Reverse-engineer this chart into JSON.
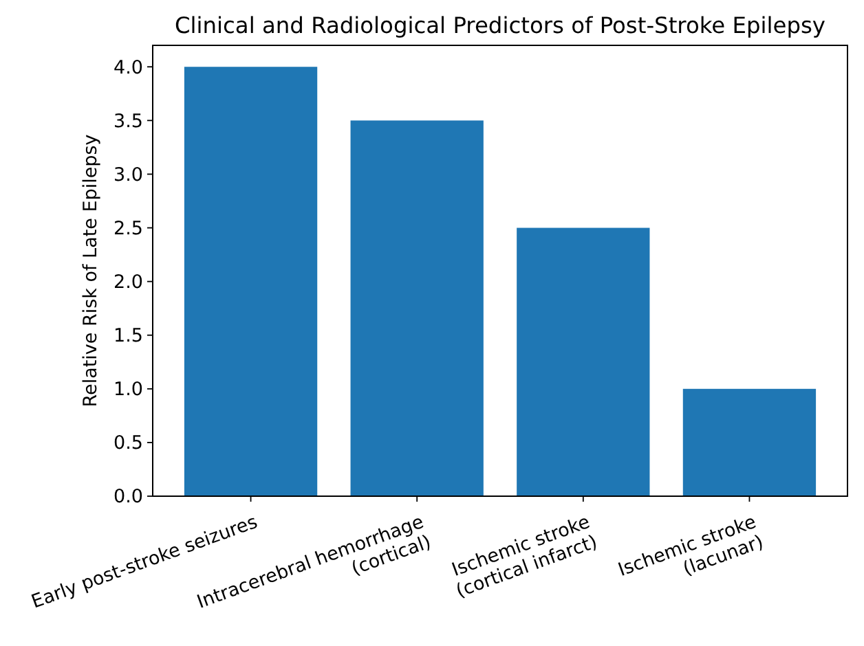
{
  "chart_data": {
    "type": "bar",
    "title": "Clinical and Radiological Predictors of Post-Stroke Epilepsy",
    "ylabel": "Relative Risk of Late Epilepsy",
    "categories": [
      "Early post-stroke seizures",
      "Intracerebral hemorrhage\n(cortical)",
      "Ischemic stroke\n(cortical infarct)",
      "Ischemic stroke\n(lacunar)"
    ],
    "values": [
      4.0,
      3.5,
      2.5,
      1.0
    ],
    "color": "#1f77b4",
    "ylim": [
      0,
      4.2
    ],
    "yticks": [
      {
        "value": 0,
        "label": "0.0"
      },
      {
        "value": 0.5,
        "label": "0.5"
      },
      {
        "value": 1,
        "label": "1.0"
      },
      {
        "value": 1.5,
        "label": "1.5"
      },
      {
        "value": 2,
        "label": "2.0"
      },
      {
        "value": 2.5,
        "label": "2.5"
      },
      {
        "value": 3,
        "label": "3.0"
      },
      {
        "value": 3.5,
        "label": "3.5"
      },
      {
        "value": 4,
        "label": "4.0"
      }
    ]
  }
}
